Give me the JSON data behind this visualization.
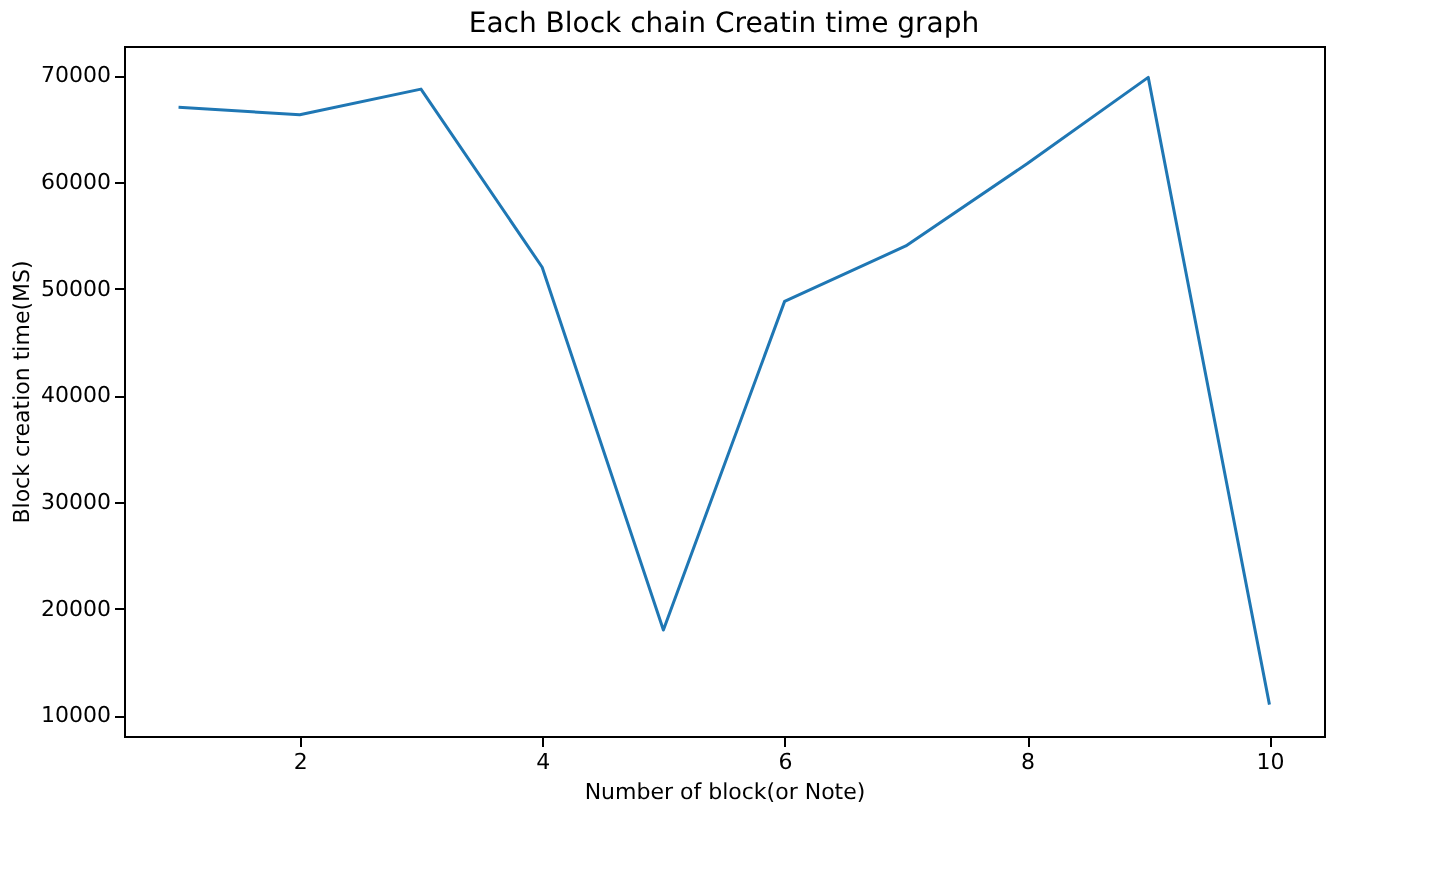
{
  "chart_data": {
    "type": "line",
    "title": "Each Block chain Creatin time graph",
    "xlabel": "Number of block(or Note)",
    "ylabel": "Block creation time(MS)",
    "x": [
      1,
      2,
      3,
      4,
      5,
      6,
      7,
      8,
      9,
      10
    ],
    "series": [
      {
        "color": "#1f77b4",
        "values": [
          67000,
          66300,
          68700,
          52000,
          18000,
          48800,
          54000,
          61700,
          69800,
          11000
        ]
      }
    ],
    "xlim": [
      0.55,
      10.45
    ],
    "xticks": [
      2,
      4,
      6,
      8,
      10
    ],
    "ylim": [
      8060,
      72740
    ],
    "yticks": [
      10000,
      20000,
      30000,
      40000,
      50000,
      60000,
      70000
    ],
    "grid": false,
    "marker": "none",
    "line_style": "solid"
  }
}
